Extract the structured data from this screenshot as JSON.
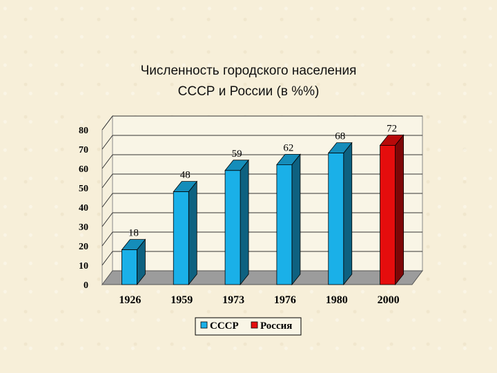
{
  "chart_data": {
    "type": "bar",
    "title_lines": [
      "Численность городского населения",
      "СССР и России (в %%)"
    ],
    "categories": [
      "1926",
      "1959",
      "1973",
      "1976",
      "1980",
      "2000"
    ],
    "values": [
      18,
      48,
      59,
      62,
      68,
      72
    ],
    "series_of_bar": [
      0,
      0,
      0,
      0,
      0,
      1
    ],
    "series": [
      {
        "name": "СССР",
        "color": "#1ab0e8"
      },
      {
        "name": "Россия",
        "color": "#e50d0d"
      }
    ],
    "ylim": [
      0,
      80
    ],
    "yticks": [
      0,
      10,
      20,
      30,
      40,
      50,
      60,
      70,
      80
    ],
    "grid": true,
    "legend_position": "bottom"
  }
}
